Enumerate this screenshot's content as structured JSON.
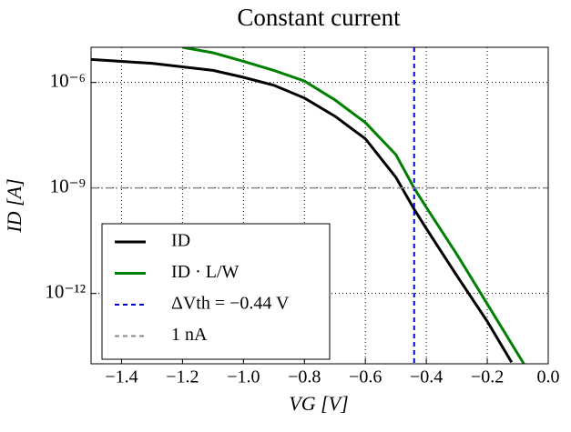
{
  "chart_data": {
    "type": "line",
    "title": "Constant current",
    "xlabel": "VG [V]",
    "ylabel": "ID [A]",
    "xlim": [
      -1.5,
      0.0
    ],
    "xticks": [
      {
        "value": -1.4,
        "label": "−1.4"
      },
      {
        "value": -1.2,
        "label": "−1.2"
      },
      {
        "value": -1.0,
        "label": "−1.0"
      },
      {
        "value": -0.8,
        "label": "−0.8"
      },
      {
        "value": -0.6,
        "label": "−0.6"
      },
      {
        "value": -0.4,
        "label": "−0.4"
      },
      {
        "value": -0.2,
        "label": "−0.2"
      },
      {
        "value": 0.0,
        "label": "0.0"
      }
    ],
    "ylim": [
      1e-14,
      1e-05
    ],
    "log_y": true,
    "yticks": [
      {
        "value": 1e-12,
        "label": "10⁻¹²"
      },
      {
        "value": 1e-09,
        "label": "10⁻⁹"
      },
      {
        "value": 1e-06,
        "label": "10⁻⁶"
      }
    ],
    "grid": true,
    "legend": "lower left",
    "series": [
      {
        "name": "ID",
        "color": "#000000",
        "x": [
          -1.5,
          -1.3,
          -1.1,
          -1.0,
          -0.9,
          -0.8,
          -0.7,
          -0.6,
          -0.5,
          -0.44,
          -0.4,
          -0.3,
          -0.2,
          -0.12
        ],
        "values": [
          4.5e-06,
          3.5e-06,
          2.2e-06,
          1.4e-06,
          8.3e-07,
          3.6e-07,
          1.1e-07,
          2.5e-08,
          2e-09,
          2.5e-10,
          7e-11,
          3.2e-12,
          1.6e-13,
          1.1e-14
        ]
      },
      {
        "name": "ID · L/W",
        "color": "#008000",
        "x": [
          -1.2,
          -1.1,
          -1.0,
          -0.9,
          -0.8,
          -0.7,
          -0.6,
          -0.5,
          -0.44,
          -0.4,
          -0.3,
          -0.2,
          -0.08
        ],
        "values": [
          1e-05,
          7e-06,
          4e-06,
          2.2e-06,
          1.1e-06,
          3.2e-07,
          7.2e-08,
          8.9e-09,
          1e-09,
          2.8e-10,
          1.3e-11,
          5e-13,
          1e-14
        ]
      }
    ],
    "reference_lines": [
      {
        "name": "ΔVth = −0.44 V",
        "color": "#0000cc",
        "x": -0.44
      },
      {
        "name": "1 nA",
        "color": "#888888",
        "y": 1e-09
      }
    ]
  }
}
